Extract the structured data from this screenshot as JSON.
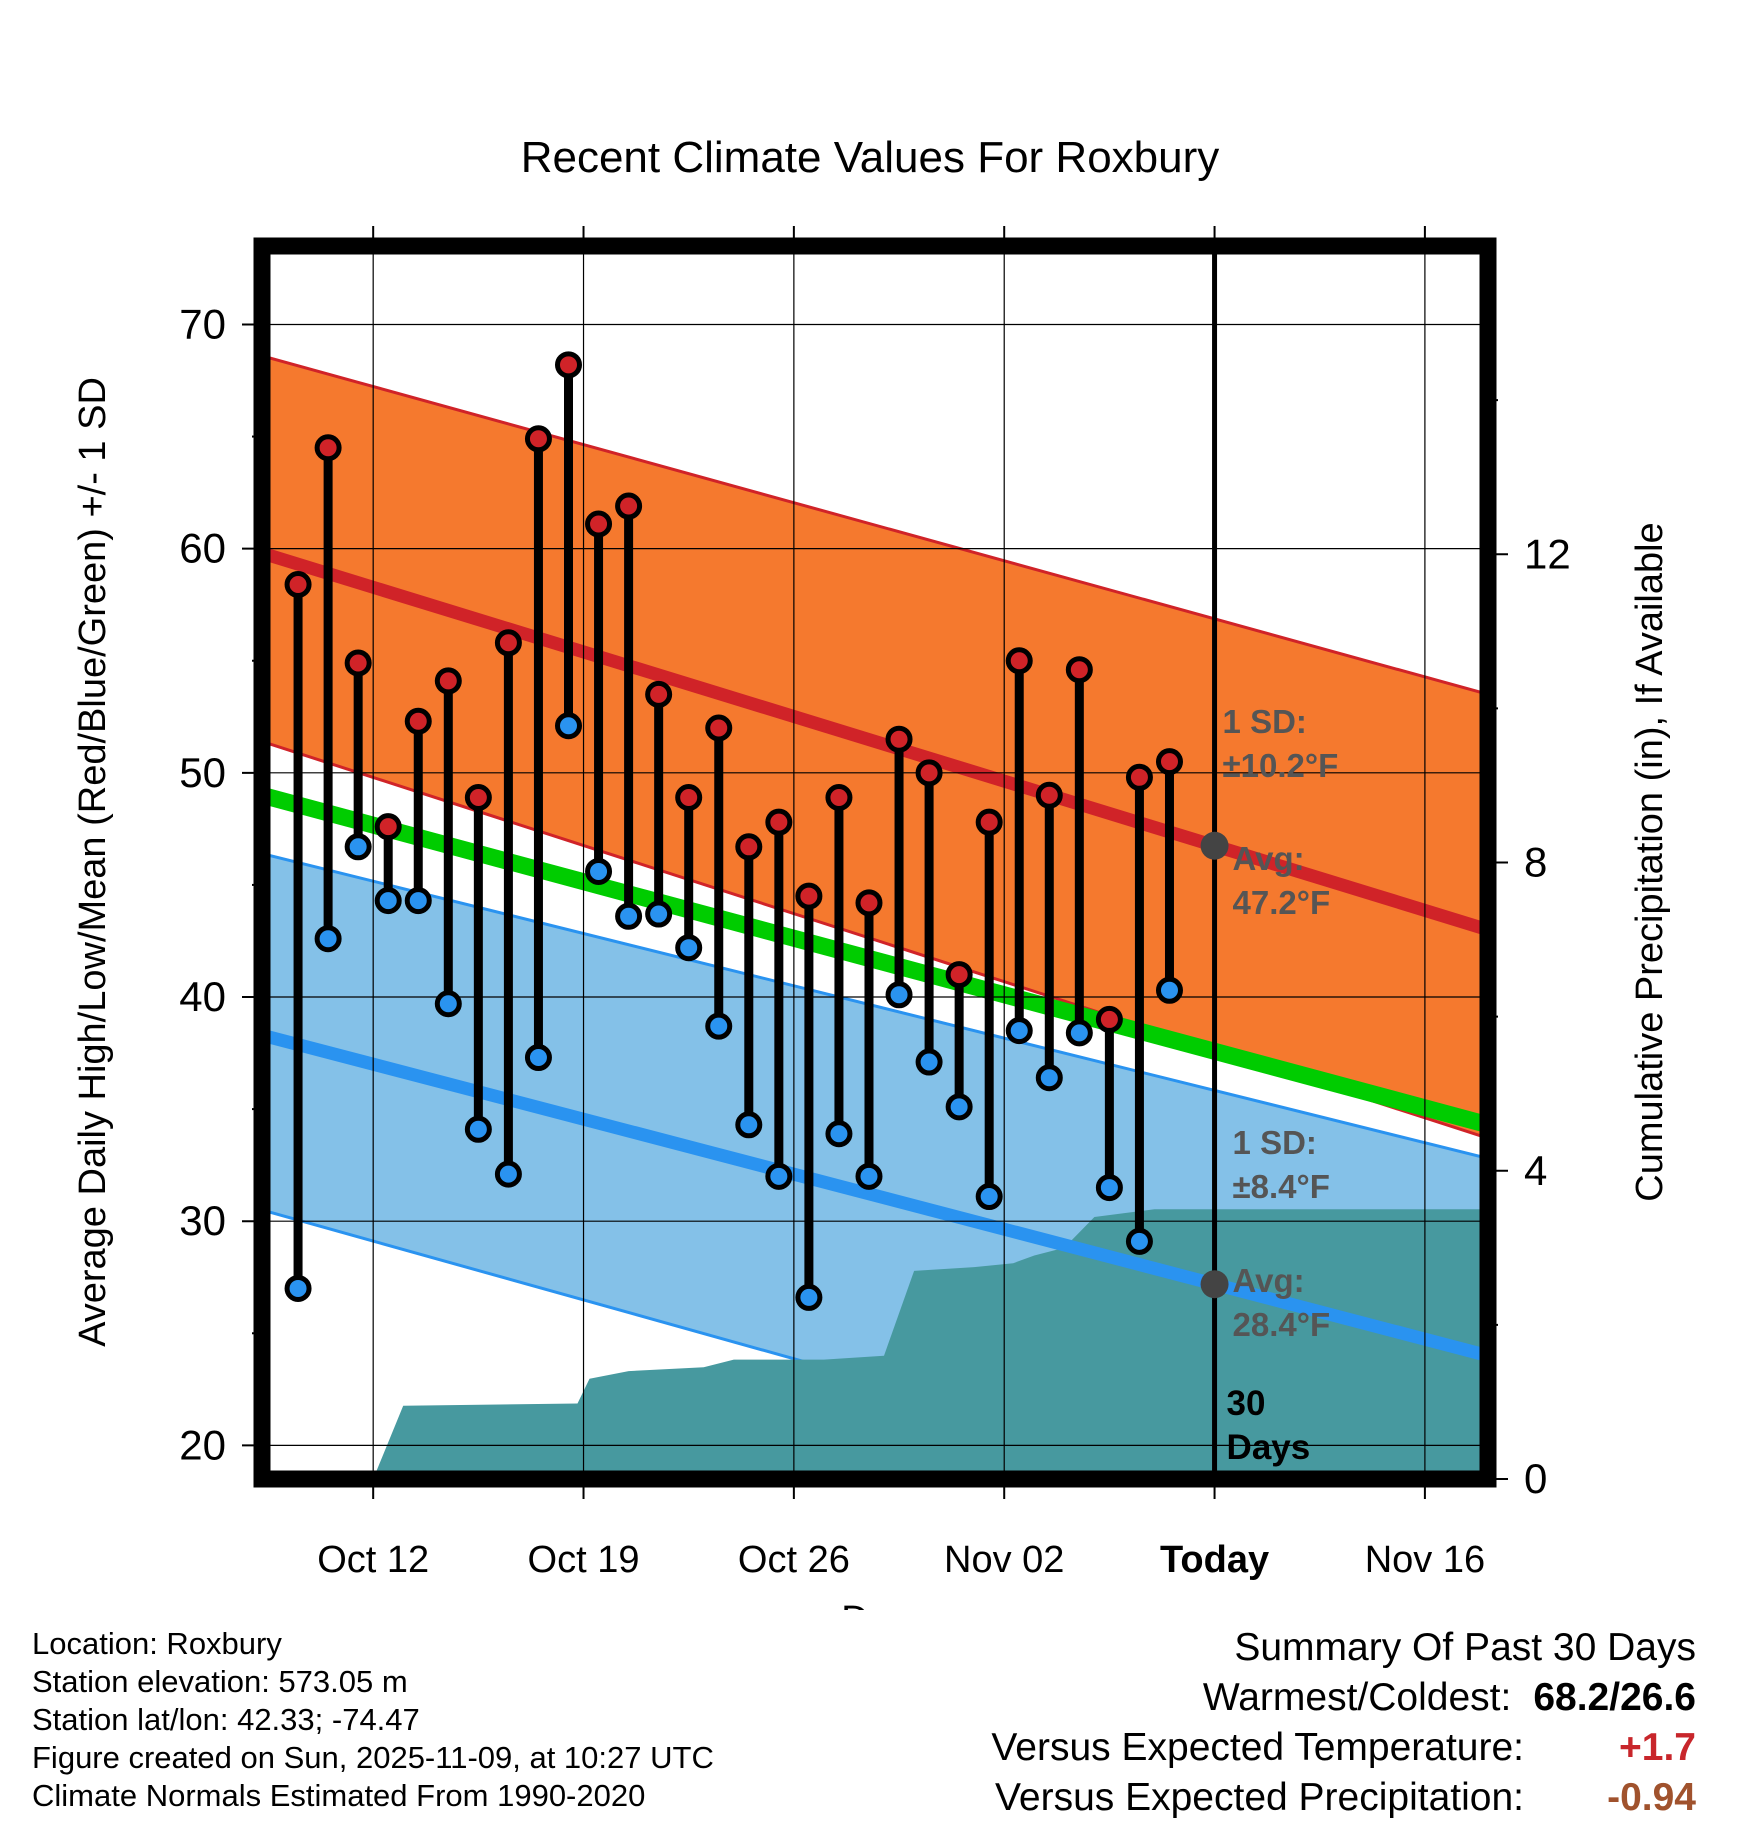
{
  "chart_data": {
    "type": "line",
    "title": "Recent Climate Values For Roxbury",
    "xlabel": "Day",
    "ylabel_left": "Average Daily High/Low/Mean (Red/Blue/Green) +/- 1 SD",
    "ylabel_right": "Cumulative Precipitation (in), If Available",
    "ylim_left": [
      18.5,
      73.5
    ],
    "ylim_right": [
      0,
      16
    ],
    "x_ticks": [
      {
        "day": 3,
        "label": "Oct 12"
      },
      {
        "day": 10,
        "label": "Oct 19"
      },
      {
        "day": 17,
        "label": "Oct 26"
      },
      {
        "day": 24,
        "label": "Nov 02"
      },
      {
        "day": 31,
        "label": "Today"
      },
      {
        "day": 38,
        "label": "Nov 16"
      }
    ],
    "y_ticks_left": [
      20,
      30,
      40,
      50,
      60,
      70
    ],
    "y_ticks_right": [
      0,
      4,
      8,
      12
    ],
    "xlim": [
      -0.7,
      40.1
    ],
    "today_day": 31,
    "normals": {
      "high_avg": [
        59.8,
        43.0
      ],
      "high_sd_upper": [
        68.6,
        53.5
      ],
      "high_sd_lower": [
        51.4,
        33.7
      ],
      "low_avg": [
        38.3,
        24.0
      ],
      "low_sd_upper": [
        46.4,
        32.8
      ],
      "low_sd_lower": [
        30.5,
        15.2
      ],
      "mean_avg": [
        49.0,
        34.3
      ]
    },
    "daily_high": [
      58.4,
      64.5,
      54.9,
      47.6,
      52.3,
      54.1,
      48.9,
      55.8,
      64.9,
      68.2,
      61.1,
      61.9,
      53.5,
      48.9,
      52.0,
      46.7,
      47.8,
      44.5,
      48.9,
      44.2,
      51.5,
      50.0,
      41.0,
      47.8,
      55.0,
      49.0,
      54.6,
      39.0,
      49.8,
      50.5
    ],
    "daily_low": [
      27.0,
      42.6,
      46.7,
      44.3,
      44.3,
      39.7,
      34.1,
      32.1,
      37.3,
      52.1,
      45.6,
      43.6,
      43.7,
      42.2,
      38.7,
      34.3,
      32.0,
      26.6,
      33.9,
      32.0,
      40.1,
      37.1,
      35.1,
      31.1,
      38.5,
      36.4,
      38.4,
      31.5,
      29.1,
      40.3
    ],
    "precip_cum": [
      [
        0.0,
        0.0
      ],
      [
        0.7,
        0.0
      ],
      [
        3.0,
        0.0
      ],
      [
        4.0,
        0.95
      ],
      [
        9.8,
        0.98
      ],
      [
        10.2,
        1.3
      ],
      [
        11.5,
        1.4
      ],
      [
        14.0,
        1.45
      ],
      [
        15.0,
        1.55
      ],
      [
        18.0,
        1.55
      ],
      [
        20.0,
        1.6
      ],
      [
        21.0,
        2.7
      ],
      [
        23.0,
        2.75
      ],
      [
        24.3,
        2.8
      ],
      [
        25.0,
        2.9
      ],
      [
        26.0,
        3.0
      ],
      [
        27.0,
        3.4
      ],
      [
        28.0,
        3.45
      ],
      [
        29.0,
        3.5
      ],
      [
        31.0,
        3.5
      ],
      [
        40.1,
        3.5
      ]
    ],
    "annotations": {
      "high_sd": "1 SD: ±10.2°F",
      "high_avg": "Avg: 47.2°F",
      "low_sd": "1 SD: ±8.4°F",
      "low_avg": "Avg: 28.4°F",
      "days": "30 Days"
    },
    "colors": {
      "high_band": "#f5792e",
      "high_line": "#d02328",
      "low_band": "#84c1e8",
      "low_line": "#2a93f0",
      "mean_line": "#00cc00",
      "precip": "#47999f",
      "today_dot": "#444444",
      "label_gray": "#555555"
    }
  },
  "info": {
    "location": "Location: Roxbury",
    "elevation": "Station elevation: 573.05 m",
    "latlon": "Station lat/lon: 42.33; -74.47",
    "created": "Figure created on Sun, 2025-11-09, at 10:27 UTC",
    "normals": "Climate Normals Estimated From 1990-2020"
  },
  "summary": {
    "title": "Summary Of Past 30 Days",
    "warmest_label": "Warmest/Coldest:",
    "warmest_value": "68.2/26.6",
    "temp_label": "Versus Expected Temperature:",
    "temp_value": "+1.7",
    "temp_color": "#c8262b",
    "precip_label": "Versus Expected Precipitation:",
    "precip_value": "-0.94",
    "precip_color": "#a0522d"
  }
}
